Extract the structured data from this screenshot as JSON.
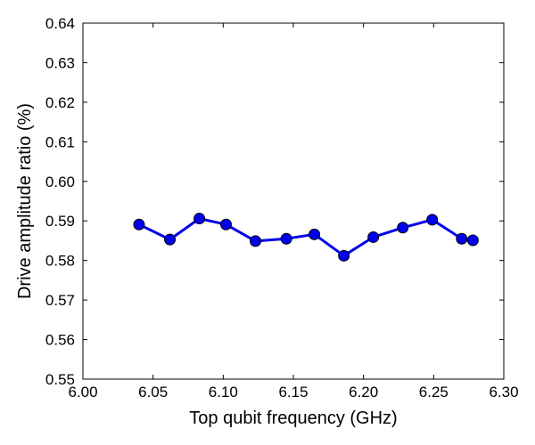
{
  "chart_data": {
    "type": "line",
    "xlabel": "Top qubit frequency (GHz)",
    "ylabel": "Drive amplitude ratio (%)",
    "xlim": [
      6.0,
      6.3
    ],
    "ylim": [
      0.55,
      0.64
    ],
    "xticks": [
      "6.00",
      "6.05",
      "6.10",
      "6.15",
      "6.20",
      "6.25",
      "6.30"
    ],
    "yticks": [
      "0.55",
      "0.56",
      "0.57",
      "0.58",
      "0.59",
      "0.60",
      "0.61",
      "0.62",
      "0.63",
      "0.64"
    ],
    "grid": false,
    "series": [
      {
        "color": "#0000ee",
        "marker": "circle",
        "x": [
          6.04,
          6.062,
          6.083,
          6.102,
          6.123,
          6.145,
          6.165,
          6.186,
          6.207,
          6.228,
          6.249,
          6.27,
          6.278
        ],
        "y": [
          0.5891,
          0.5853,
          0.5906,
          0.5891,
          0.5849,
          0.5855,
          0.5866,
          0.5812,
          0.5859,
          0.5883,
          0.5903,
          0.5855,
          0.5851
        ]
      }
    ]
  }
}
